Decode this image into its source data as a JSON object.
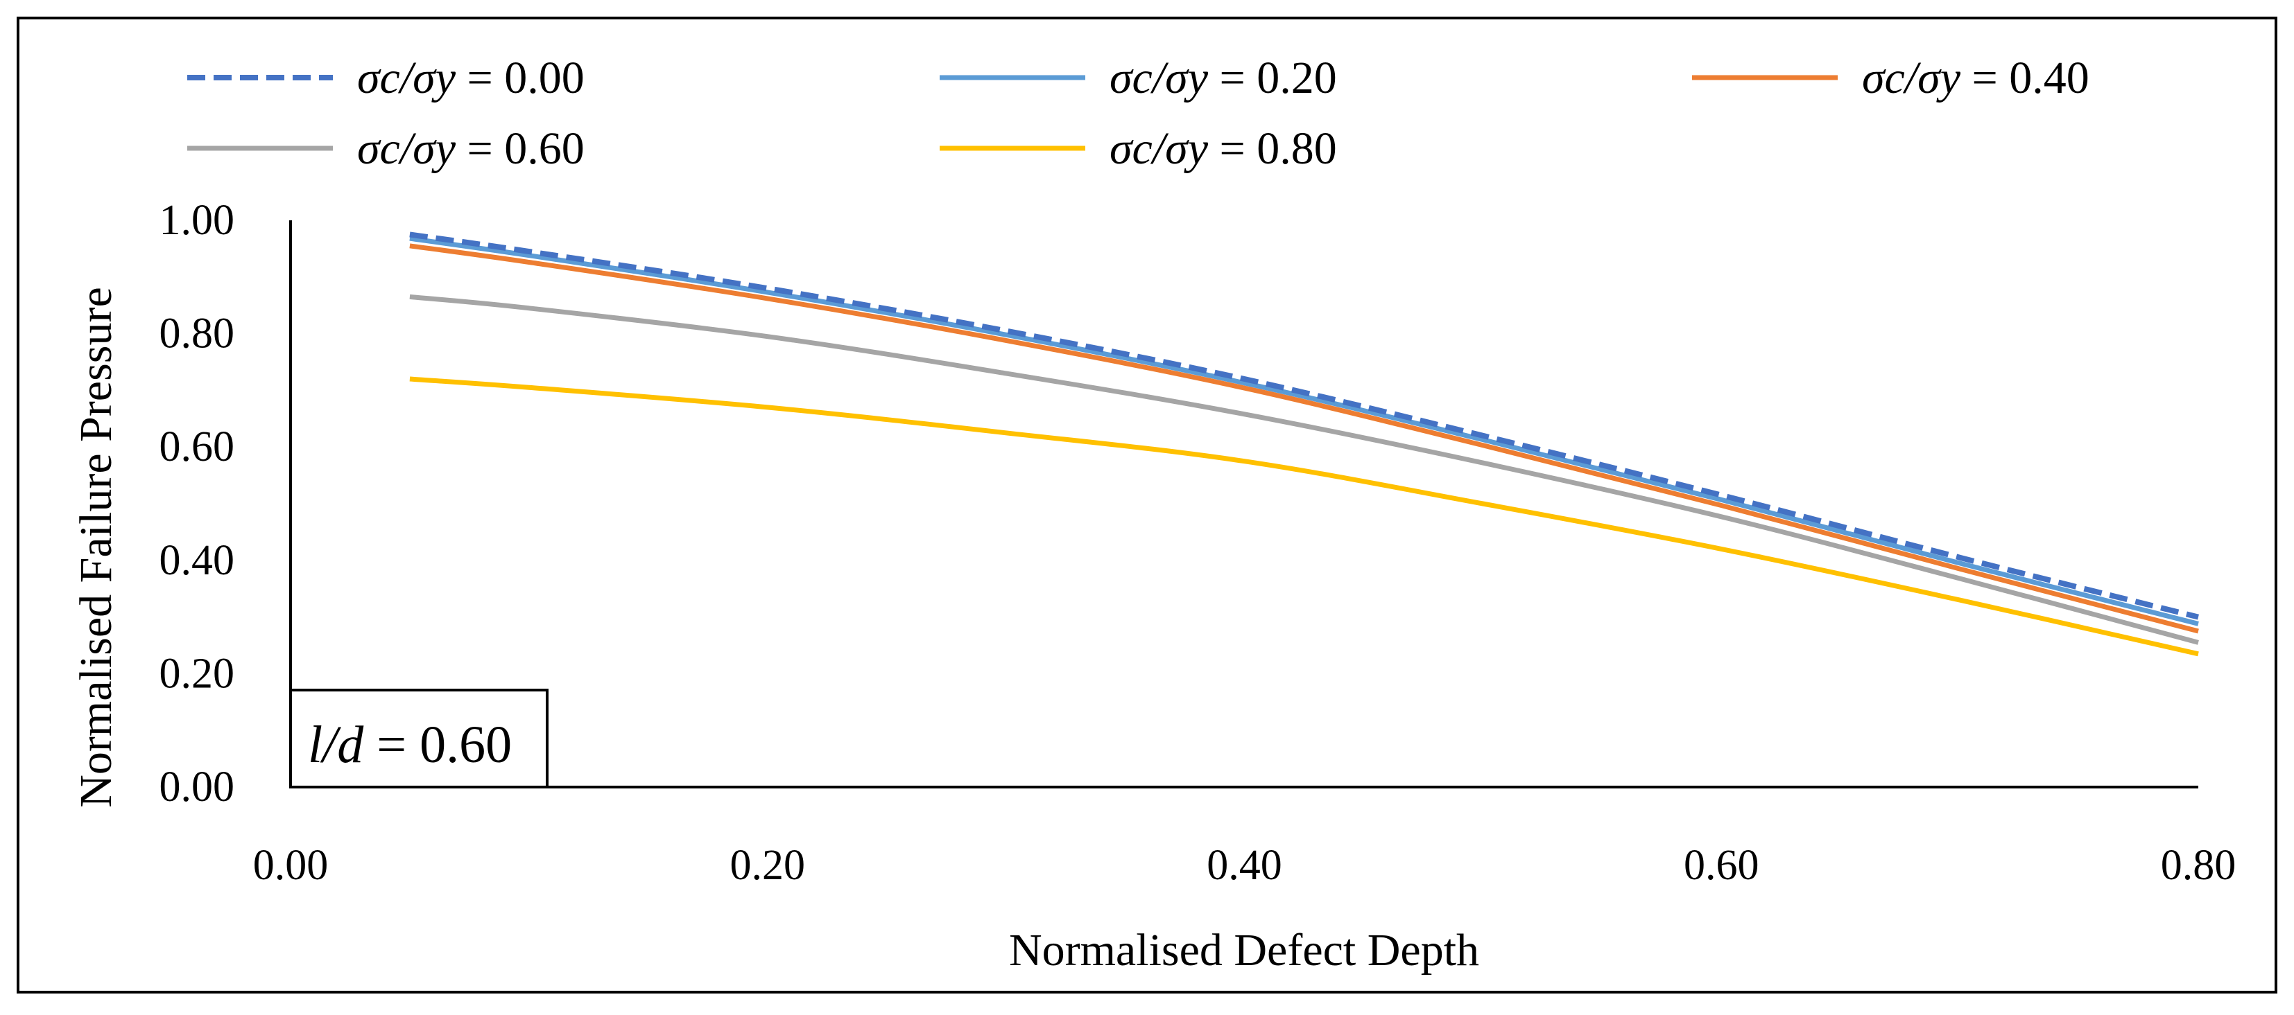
{
  "chart_data": {
    "type": "line",
    "title": "",
    "xlabel": "Normalised Defect Depth",
    "ylabel": "Normalised Failure Pressure",
    "xlim": [
      0,
      0.8
    ],
    "ylim": [
      0,
      1.0
    ],
    "x_ticks": [
      "0.00",
      "0.20",
      "0.40",
      "0.60",
      "0.80"
    ],
    "y_ticks": [
      "0.00",
      "0.20",
      "0.40",
      "0.60",
      "0.80",
      "1.00"
    ],
    "grid": false,
    "legend_position": "top",
    "annotation": {
      "italic": "l/d",
      "rest": " = 0.60"
    },
    "x": [
      0.05,
      0.1,
      0.2,
      0.3,
      0.4,
      0.5,
      0.6,
      0.7,
      0.8
    ],
    "series": [
      {
        "name": "σc/σy = 0.00",
        "label_italic": "σc/σy",
        "label_value": " = 0.00",
        "color": "#4472C4",
        "dash": "dashed",
        "values": [
          0.975,
          0.945,
          0.88,
          0.805,
          0.72,
          0.62,
          0.515,
          0.405,
          0.3
        ]
      },
      {
        "name": "σc/σy = 0.20",
        "label_italic": "σc/σy",
        "label_value": " = 0.20",
        "color": "#5B9BD5",
        "dash": "solid",
        "values": [
          0.968,
          0.938,
          0.873,
          0.798,
          0.713,
          0.613,
          0.507,
          0.395,
          0.288
        ]
      },
      {
        "name": "σc/σy = 0.40",
        "label_italic": "σc/σy",
        "label_value": " = 0.40",
        "color": "#ED7D31",
        "dash": "solid",
        "values": [
          0.955,
          0.926,
          0.862,
          0.788,
          0.704,
          0.603,
          0.497,
          0.385,
          0.275
        ]
      },
      {
        "name": "σc/σy = 0.60",
        "label_italic": "σc/σy",
        "label_value": " = 0.60",
        "color": "#A5A5A5",
        "dash": "solid",
        "values": [
          0.865,
          0.845,
          0.795,
          0.73,
          0.658,
          0.572,
          0.477,
          0.368,
          0.255
        ]
      },
      {
        "name": "σc/σy = 0.80",
        "label_italic": "σc/σy",
        "label_value": " = 0.80",
        "color": "#FFC000",
        "dash": "solid",
        "values": [
          0.72,
          0.705,
          0.67,
          0.625,
          0.575,
          0.5,
          0.42,
          0.33,
          0.235
        ]
      }
    ]
  }
}
